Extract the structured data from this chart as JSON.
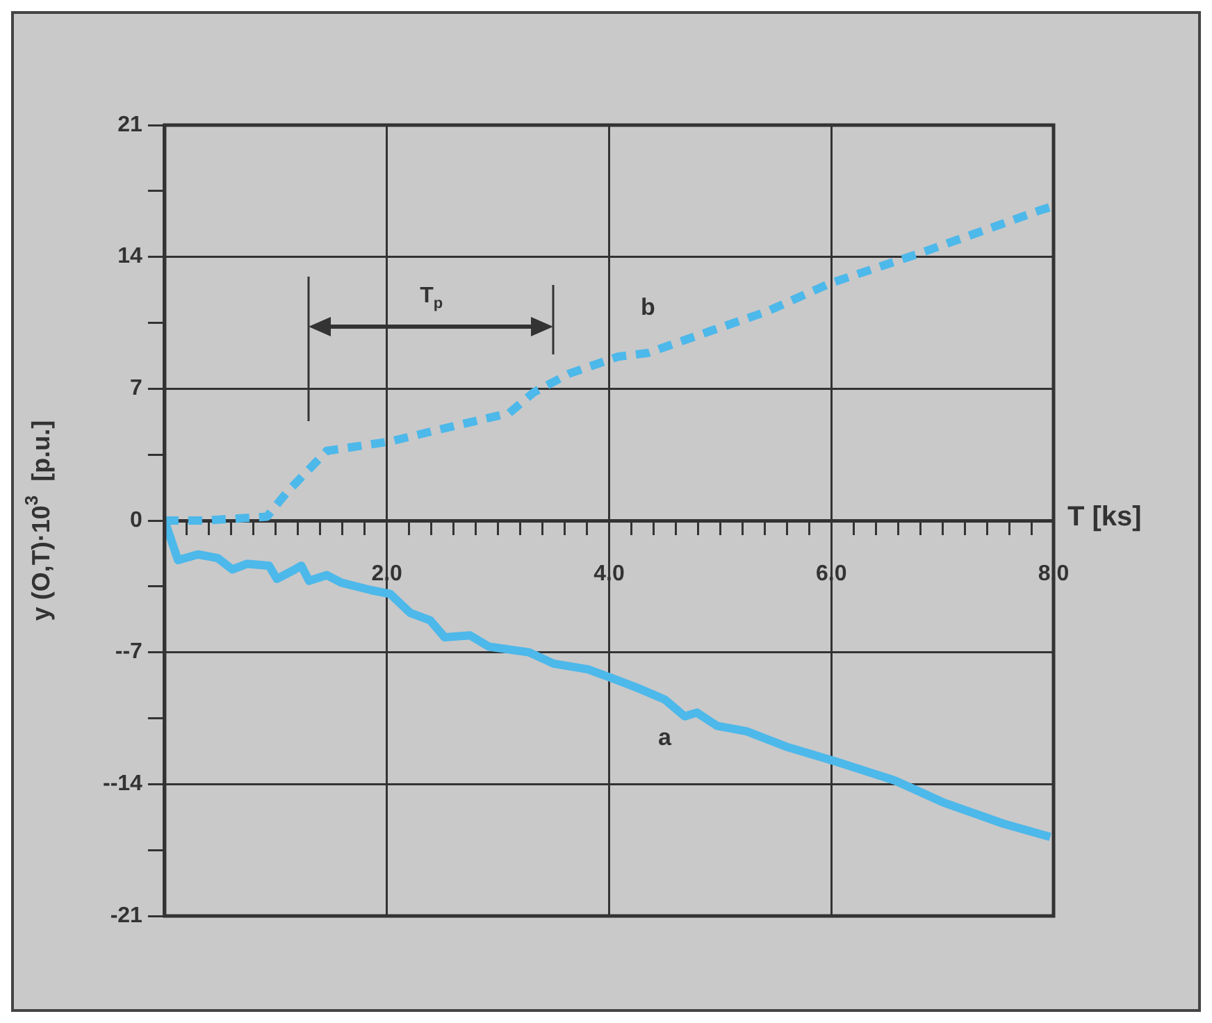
{
  "chart_data": {
    "type": "line",
    "xlabel": "T [ks]",
    "ylabel": "y (O,T)·10$^{3}$  [p.u.]",
    "xlim": [
      0,
      8
    ],
    "ylim": [
      -21,
      21
    ],
    "xticks": [
      {
        "value": 0.2,
        "label": null
      },
      {
        "value": 0.4,
        "label": null
      },
      {
        "value": 0.6,
        "label": null
      },
      {
        "value": 0.8,
        "label": null
      },
      {
        "value": 1,
        "label": null
      },
      {
        "value": 1.2,
        "label": null
      },
      {
        "value": 1.4,
        "label": null
      },
      {
        "value": 1.6,
        "label": null
      },
      {
        "value": 1.8,
        "label": null
      },
      {
        "value": 2,
        "label": "2.0"
      },
      {
        "value": 2.2,
        "label": null
      },
      {
        "value": 2.4,
        "label": null
      },
      {
        "value": 2.6,
        "label": null
      },
      {
        "value": 2.8,
        "label": null
      },
      {
        "value": 3,
        "label": null
      },
      {
        "value": 3.2,
        "label": null
      },
      {
        "value": 3.4,
        "label": null
      },
      {
        "value": 3.6,
        "label": null
      },
      {
        "value": 3.8,
        "label": null
      },
      {
        "value": 4,
        "label": "4.0"
      },
      {
        "value": 4.2,
        "label": null
      },
      {
        "value": 4.4,
        "label": null
      },
      {
        "value": 4.6,
        "label": null
      },
      {
        "value": 4.8,
        "label": null
      },
      {
        "value": 5,
        "label": null
      },
      {
        "value": 5.2,
        "label": null
      },
      {
        "value": 5.4,
        "label": null
      },
      {
        "value": 5.6,
        "label": null
      },
      {
        "value": 5.8,
        "label": null
      },
      {
        "value": 6,
        "label": "6.0"
      },
      {
        "value": 6.2,
        "label": null
      },
      {
        "value": 6.4,
        "label": null
      },
      {
        "value": 6.6,
        "label": null
      },
      {
        "value": 6.8,
        "label": null
      },
      {
        "value": 7,
        "label": null
      },
      {
        "value": 7.2,
        "label": null
      },
      {
        "value": 7.4,
        "label": null
      },
      {
        "value": 7.6,
        "label": null
      },
      {
        "value": 7.8,
        "label": null
      },
      {
        "value": 8,
        "label": "8.0"
      }
    ],
    "yticks": [
      -21,
      {
        "value": -17.5,
        "label": null
      },
      {
        "value": -14,
        "label": "--14"
      },
      {
        "value": -10.5,
        "label": null
      },
      {
        "value": -7,
        "label": "--7"
      },
      {
        "value": -3.5,
        "label": null
      },
      0,
      {
        "value": 3.5,
        "label": null
      },
      7,
      {
        "value": 10.5,
        "label": null
      },
      14,
      {
        "value": 17.5,
        "label": null
      },
      21
    ],
    "grid": true,
    "legend": false,
    "annotations": [
      "T$_{p}$"
    ],
    "series": [
      {
        "name": "b",
        "color": "#4db8ea",
        "line_style": "dashed",
        "x": [
          0,
          0.34,
          0.92,
          1.1,
          1.46,
          2.03,
          2.52,
          3.1,
          3.32,
          3.64,
          4.08,
          4.35,
          4.88,
          5.42,
          5.99,
          6.8,
          7.89,
          8.0
        ],
        "values": [
          0,
          0,
          0.2,
          1.5,
          3.7,
          4.2,
          4.9,
          5.7,
          6.8,
          7.8,
          8.7,
          8.9,
          10.0,
          11.1,
          12.6,
          14.2,
          16.5,
          16.7
        ]
      },
      {
        "name": "a",
        "color": "#4db8ea",
        "line_style": "solid",
        "x": [
          0,
          0.12,
          0.3,
          0.48,
          0.61,
          0.74,
          0.94,
          1.01,
          1.14,
          1.23,
          1.3,
          1.46,
          1.59,
          1.86,
          2.03,
          2.21,
          2.39,
          2.52,
          2.75,
          2.92,
          3.28,
          3.5,
          3.81,
          4.04,
          4.26,
          4.5,
          4.68,
          4.79,
          4.97,
          5.24,
          5.59,
          6.04,
          6.57,
          7.02,
          7.55,
          7.97
        ],
        "values": [
          0,
          -2.1,
          -1.8,
          -2.0,
          -2.6,
          -2.3,
          -2.4,
          -3.1,
          -2.7,
          -2.4,
          -3.2,
          -2.9,
          -3.3,
          -3.7,
          -3.9,
          -4.9,
          -5.3,
          -6.2,
          -6.1,
          -6.7,
          -7.0,
          -7.6,
          -7.9,
          -8.4,
          -8.9,
          -9.5,
          -10.4,
          -10.2,
          -10.9,
          -11.2,
          -12.0,
          -12.8,
          -13.8,
          -15.0,
          -16.1,
          -16.8
        ]
      }
    ]
  }
}
